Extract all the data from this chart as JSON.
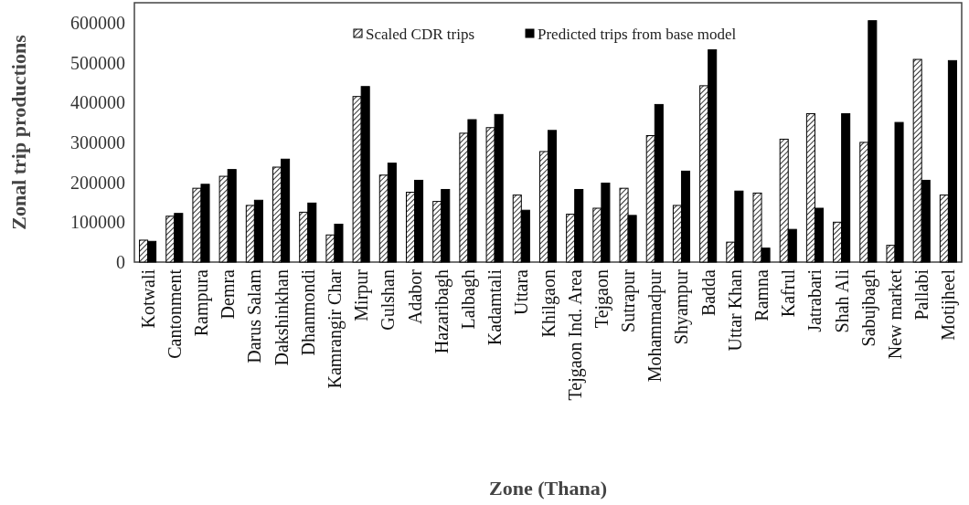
{
  "chart_data": {
    "type": "bar",
    "xlabel": "Zone (Thana)",
    "ylabel": "Zonal trip productions",
    "categories": [
      "Kotwali",
      "Cantonment",
      "Rampura",
      "Demra",
      "Darus Salam",
      "Dakshinkhan",
      "Dhanmondi",
      "Kamrangir Char",
      "Mirpur",
      "Gulshan",
      "Adabor",
      "Hazaribagh",
      "Lalbagh",
      "Kadamtali",
      "Uttara",
      "Khilgaon",
      "Tejgaon Ind. Area",
      "Tejgaon",
      "Sutrapur",
      "Mohammadpur",
      "Shyampur",
      "Badda",
      "Uttar Khan",
      "Ramna",
      "Kafrul",
      "Jatrabari",
      "Shah Ali",
      "Sabujbagh",
      "New market",
      "Pallabi",
      "Motijheel"
    ],
    "series": [
      {
        "name": "Scaled CDR trips",
        "color": "#000000",
        "values": [
          55000,
          115000,
          185000,
          215000,
          142000,
          238000,
          125000,
          68000,
          415000,
          218000,
          175000,
          152000,
          323000,
          337000,
          168000,
          277000,
          120000,
          135000,
          185000,
          317000,
          142000,
          442000,
          50000,
          173000,
          308000,
          372000,
          100000,
          300000,
          42000,
          508000,
          168000
        ]
      },
      {
        "name": "Predicted trips from base model",
        "color": "#000000",
        "values": [
          52000,
          122000,
          195000,
          232000,
          155000,
          258000,
          148000,
          95000,
          440000,
          248000,
          205000,
          182000,
          357000,
          370000,
          130000,
          330000,
          182000,
          198000,
          117000,
          395000,
          228000,
          532000,
          178000,
          35000,
          82000,
          135000,
          372000,
          605000,
          350000,
          205000,
          505000
        ]
      }
    ],
    "ylim": [
      0,
      650000
    ],
    "yticks": [
      0,
      100000,
      200000,
      300000,
      400000,
      500000,
      600000
    ],
    "grid": false,
    "legend": "top"
  }
}
